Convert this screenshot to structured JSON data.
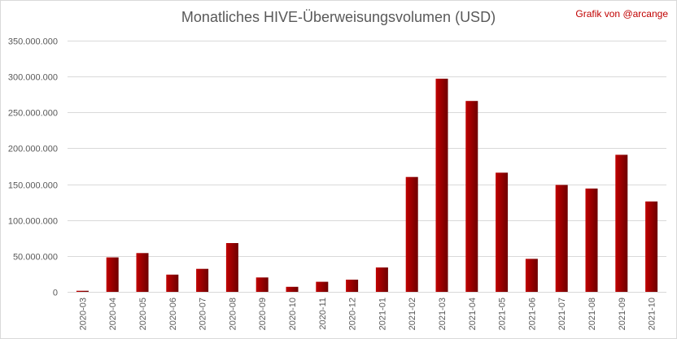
{
  "header": {
    "title": "Monatliches HIVE-Überweisungsvolumen (USD)",
    "credit": "Grafik von @arcange"
  },
  "colors": {
    "bar_light": "#c00000",
    "bar_dark": "#6e0000",
    "grid": "#d9d9d9",
    "text": "#595959",
    "credit": "#c00000"
  },
  "chart_data": {
    "type": "bar",
    "title": "Monatliches HIVE-Überweisungsvolumen (USD)",
    "xlabel": "",
    "ylabel": "",
    "ylim": [
      0,
      350000000
    ],
    "grid": true,
    "legend": "none",
    "y_ticks": [
      0,
      50000000,
      100000000,
      150000000,
      200000000,
      250000000,
      300000000,
      350000000
    ],
    "y_tick_labels": [
      "0",
      "50.000.000",
      "100.000.000",
      "150.000.000",
      "200.000.000",
      "250.000.000",
      "300.000.000",
      "350.000.000"
    ],
    "categories": [
      "2020-03",
      "2020-04",
      "2020-05",
      "2020-06",
      "2020-07",
      "2020-08",
      "2020-09",
      "2020-10",
      "2020-11",
      "2020-12",
      "2021-01",
      "2021-02",
      "2021-03",
      "2021-04",
      "2021-05",
      "2021-06",
      "2021-07",
      "2021-08",
      "2021-09",
      "2021-10"
    ],
    "values": [
      1500000,
      48000000,
      54000000,
      24000000,
      32000000,
      68000000,
      20000000,
      7000000,
      14000000,
      17000000,
      34000000,
      160000000,
      297000000,
      266000000,
      166000000,
      46000000,
      149000000,
      144000000,
      191000000,
      126000000
    ]
  }
}
